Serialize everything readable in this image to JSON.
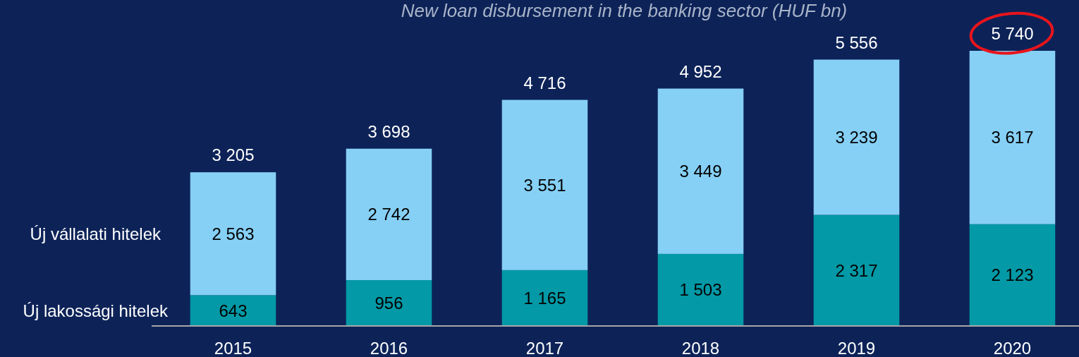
{
  "chart_data": {
    "type": "bar",
    "title": "New loan disbursement in the banking sector (HUF bn)",
    "stacked": true,
    "categories": [
      "2015",
      "2016",
      "2017",
      "2018",
      "2019",
      "2020"
    ],
    "series": [
      {
        "name": "Új lakossági hitelek",
        "color": "#0399a6",
        "values": [
          643,
          956,
          1165,
          1503,
          2317,
          2123
        ],
        "value_labels": [
          "643",
          "956",
          "1 165",
          "1 503",
          "2 317",
          "2 123"
        ]
      },
      {
        "name": "Új vállalati hitelek",
        "color": "#86d0f5",
        "values": [
          2563,
          2742,
          3551,
          3449,
          3239,
          3617
        ],
        "value_labels": [
          "2 563",
          "2 742",
          "3 551",
          "3 449",
          "3 239",
          "3 617"
        ]
      }
    ],
    "totals": [
      "3 205",
      "3 698",
      "4 716",
      "4 952",
      "5 556",
      "5 740"
    ],
    "legend": "left"
  }
}
